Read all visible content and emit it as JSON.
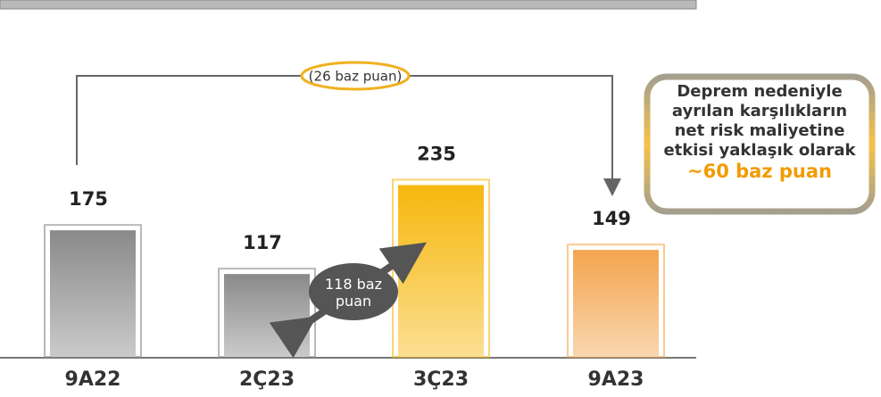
{
  "chart_data": {
    "type": "bar",
    "categories": [
      "9A22",
      "2Ç23",
      "3Ç23",
      "9A23"
    ],
    "values": [
      175,
      117,
      235,
      149
    ],
    "colors": [
      "#8a8a8a",
      "#8a8a8a",
      "#f6b70d",
      "#f3a54e"
    ],
    "ylim": [
      0,
      300
    ],
    "annotations": {
      "bracket": "(26 baz puan)",
      "difference": "118 baz puan",
      "note": "Deprem nedeniyle ayrılan karşılıkların net risk maliyetine etkisi yaklaşık olarak",
      "note_highlight": "~60 baz puan"
    }
  }
}
